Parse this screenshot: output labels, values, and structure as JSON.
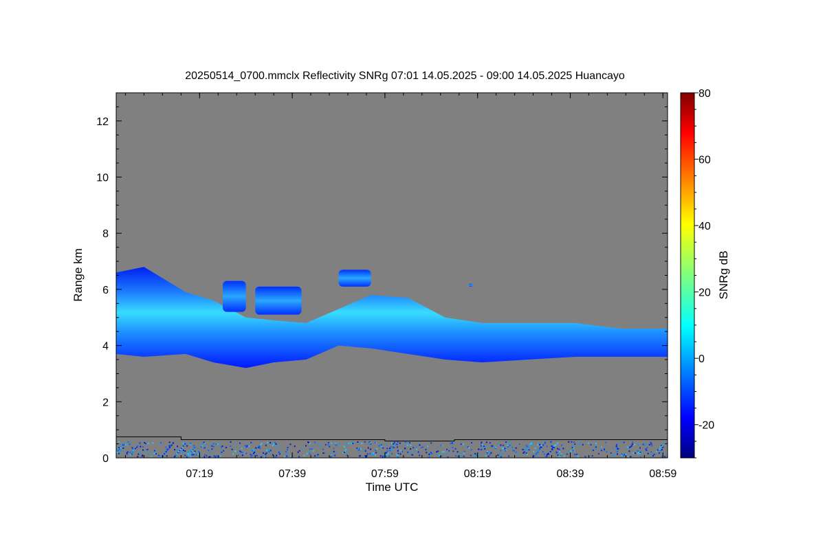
{
  "chart_data": {
    "type": "heatmap",
    "title": "20250514_0700.mmclx Reflectivity SNRg   07:01 14.05.2025 - 09:00 14.05.2025 Huancayo",
    "xlabel": "Time UTC",
    "ylabel": "Range km",
    "colorbar_label": "SNRg dB",
    "x_range": [
      "07:01",
      "09:00"
    ],
    "y_range": [
      0,
      13
    ],
    "x_ticks": [
      "07:19",
      "07:39",
      "07:59",
      "08:19",
      "08:39",
      "08:59"
    ],
    "y_ticks": [
      0,
      2,
      4,
      6,
      8,
      10,
      12
    ],
    "colorbar_range": [
      -30,
      80
    ],
    "colorbar_ticks": [
      -20,
      0,
      20,
      40,
      60,
      80
    ],
    "colormap": "jet",
    "no_signal_color": "#808080",
    "grid": false,
    "echo_layer": {
      "description_points": [
        {
          "time": "07:01",
          "base_km": 3.7,
          "top_km": 6.6
        },
        {
          "time": "07:07",
          "base_km": 3.6,
          "top_km": 6.8
        },
        {
          "time": "07:16",
          "base_km": 3.7,
          "top_km": 5.9
        },
        {
          "time": "07:22",
          "base_km": 3.4,
          "top_km": 5.6
        },
        {
          "time": "07:29",
          "base_km": 3.2,
          "top_km": 5.0
        },
        {
          "time": "07:35",
          "base_km": 3.4,
          "top_km": 4.9
        },
        {
          "time": "07:42",
          "base_km": 3.5,
          "top_km": 4.8
        },
        {
          "time": "07:49",
          "base_km": 4.0,
          "top_km": 5.3
        },
        {
          "time": "07:56",
          "base_km": 3.9,
          "top_km": 5.8
        },
        {
          "time": "08:04",
          "base_km": 3.7,
          "top_km": 5.7
        },
        {
          "time": "08:12",
          "base_km": 3.5,
          "top_km": 5.0
        },
        {
          "time": "08:20",
          "base_km": 3.4,
          "top_km": 4.8
        },
        {
          "time": "08:30",
          "base_km": 3.5,
          "top_km": 4.8
        },
        {
          "time": "08:40",
          "base_km": 3.6,
          "top_km": 4.8
        },
        {
          "time": "08:50",
          "base_km": 3.6,
          "top_km": 4.6
        },
        {
          "time": "09:00",
          "base_km": 3.6,
          "top_km": 4.6
        }
      ],
      "core_snr_db": 10,
      "edge_snr_db": -20
    },
    "upper_patches": [
      {
        "time_start": "07:24",
        "time_end": "07:29",
        "base_km": 5.2,
        "top_km": 6.3
      },
      {
        "time_start": "07:31",
        "time_end": "07:41",
        "base_km": 5.1,
        "top_km": 6.1
      },
      {
        "time_start": "07:49",
        "time_end": "07:56",
        "base_km": 6.1,
        "top_km": 6.7
      },
      {
        "time_start": "08:17",
        "time_end": "08:18",
        "base_km": 6.1,
        "top_km": 6.2
      }
    ],
    "lowest_range_line_km": [
      {
        "time": "07:01",
        "value": 0.75
      },
      {
        "time": "07:15",
        "value": 0.75
      },
      {
        "time": "07:15",
        "value": 0.65
      },
      {
        "time": "07:59",
        "value": 0.65
      },
      {
        "time": "07:59",
        "value": 0.6
      },
      {
        "time": "08:14",
        "value": 0.6
      },
      {
        "time": "08:14",
        "value": 0.65
      },
      {
        "time": "09:00",
        "value": 0.65
      }
    ]
  }
}
